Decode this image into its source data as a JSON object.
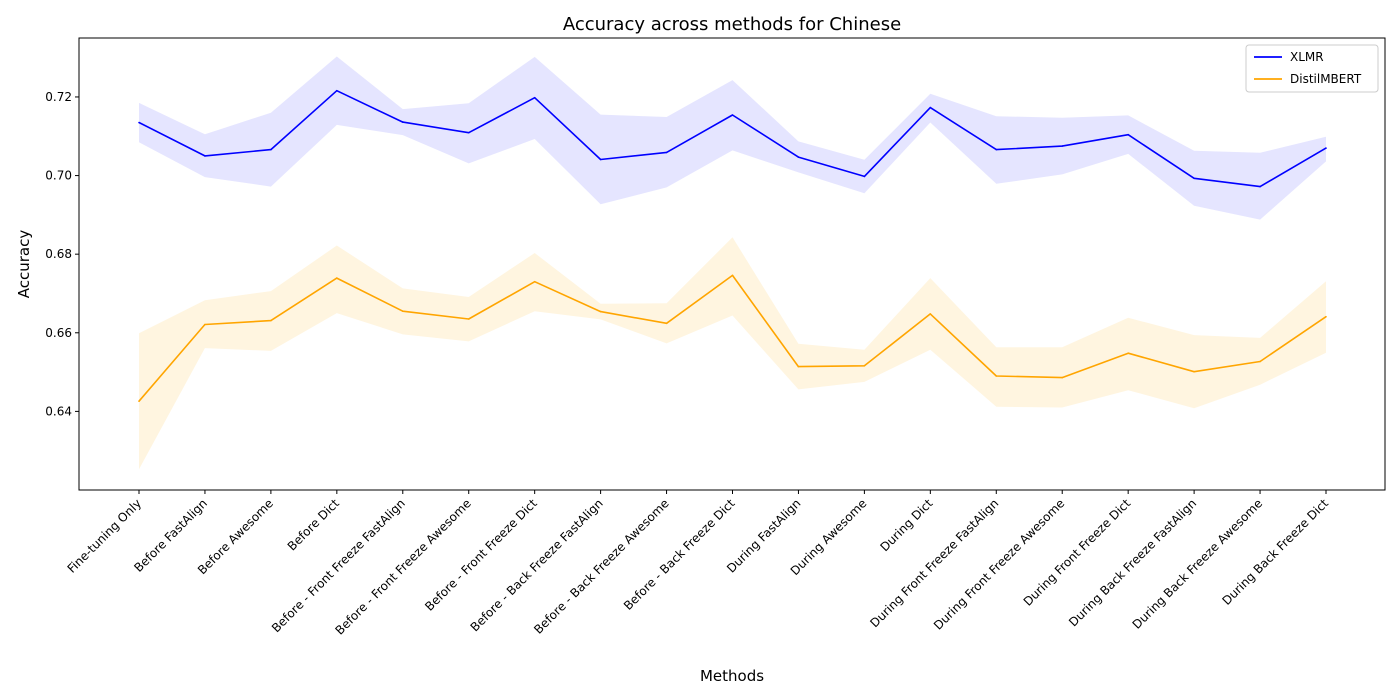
{
  "chart_data": {
    "type": "line",
    "title": "Accuracy across methods for Chinese",
    "xlabel": "Methods",
    "ylabel": "Accuracy",
    "ylim": [
      0.62,
      0.735
    ],
    "yticks": [
      "0.64",
      "0.66",
      "0.68",
      "0.70",
      "0.72"
    ],
    "ytick_values": [
      0.64,
      0.66,
      0.68,
      0.7,
      0.72
    ],
    "grid": false,
    "legend_position": "top-right",
    "categories": [
      "Fine-tuning Only",
      "Before FastAlign",
      "Before Awesome",
      "Before Dict",
      "Before - Front Freeze FastAlign",
      "Before - Front Freeze Awesome",
      "Before - Front Freeze Dict",
      "Before - Back Freeze FastAlign",
      "Before - Back Freeze Awesome",
      "Before - Back Freeze Dict",
      "During FastAlign",
      "During Awesome",
      "During Dict",
      "During Front Freeze FastAlign",
      "During Front Freeze Awesome",
      "During Front Freeze Dict",
      "During Back Freeze FastAlign",
      "During Back Freeze Awesome",
      "During Back Freeze Dict"
    ],
    "series": [
      {
        "name": "XLMR",
        "color": "#0000ff",
        "band_color": "#e5e5ff",
        "values": [
          0.7135,
          0.705,
          0.7066,
          0.7216,
          0.7136,
          0.7109,
          0.7198,
          0.7041,
          0.7059,
          0.7154,
          0.7047,
          0.6998,
          0.7173,
          0.7066,
          0.7075,
          0.7104,
          0.6993,
          0.6972,
          0.707
        ],
        "lower": [
          0.7085,
          0.6996,
          0.6972,
          0.7129,
          0.7103,
          0.7031,
          0.7093,
          0.6927,
          0.697,
          0.7064,
          0.7008,
          0.6955,
          0.7135,
          0.6979,
          0.7003,
          0.7055,
          0.6923,
          0.6888,
          0.7036
        ],
        "upper": [
          0.7185,
          0.7105,
          0.716,
          0.7303,
          0.7169,
          0.7184,
          0.7302,
          0.7155,
          0.7149,
          0.7243,
          0.7087,
          0.704,
          0.7208,
          0.7151,
          0.7147,
          0.7153,
          0.7063,
          0.7058,
          0.7099
        ]
      },
      {
        "name": "DistilMBERT",
        "color": "#ffa500",
        "band_color": "#fff5e0",
        "values": [
          0.6426,
          0.6621,
          0.6631,
          0.6739,
          0.6655,
          0.6635,
          0.673,
          0.6654,
          0.6624,
          0.6746,
          0.6514,
          0.6516,
          0.6648,
          0.649,
          0.6486,
          0.6548,
          0.6501,
          0.6527,
          0.6641
        ],
        "lower": [
          0.6253,
          0.6561,
          0.6554,
          0.665,
          0.6596,
          0.6578,
          0.6655,
          0.6634,
          0.6573,
          0.6644,
          0.6456,
          0.6475,
          0.6557,
          0.6412,
          0.641,
          0.6454,
          0.6408,
          0.6468,
          0.6549
        ],
        "upper": [
          0.6599,
          0.6683,
          0.6706,
          0.6822,
          0.6713,
          0.6691,
          0.6803,
          0.6674,
          0.6675,
          0.6843,
          0.6572,
          0.6557,
          0.6739,
          0.6563,
          0.6563,
          0.6638,
          0.6594,
          0.6587,
          0.6731
        ]
      }
    ]
  }
}
